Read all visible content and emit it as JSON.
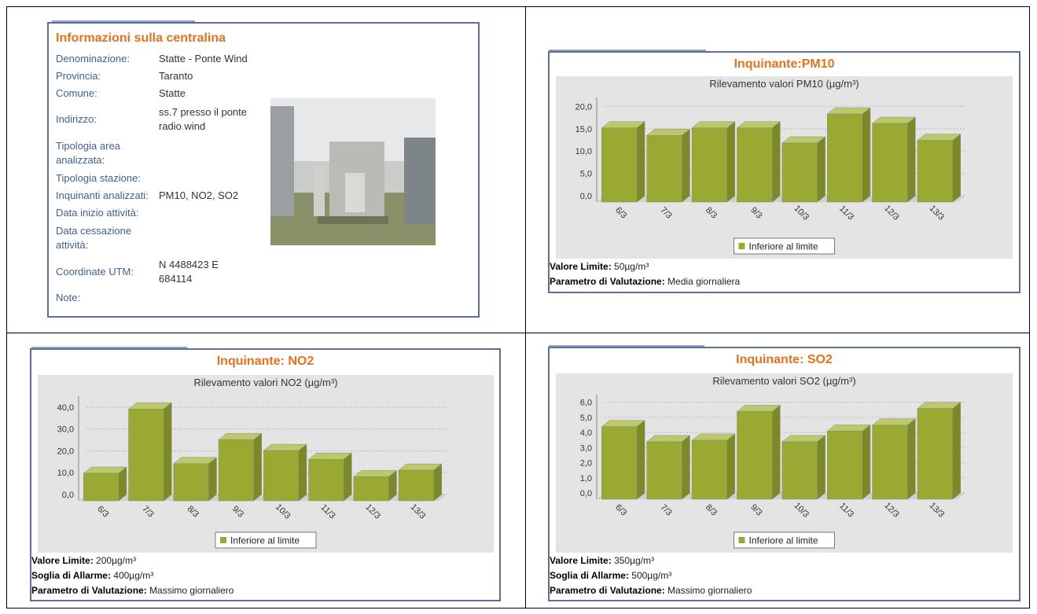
{
  "info": {
    "title": "Informazioni sulla centralina",
    "rows": [
      [
        "Denominazione:",
        "Statte - Ponte Wind"
      ],
      [
        "Provincia:",
        "Taranto"
      ],
      [
        "Comune:",
        "Statte"
      ],
      [
        "Indirizzo:",
        "ss.7 presso il ponte radio wind"
      ],
      [
        "Tipologia area analizzata:"
      ],
      [
        "Tipologia stazione:"
      ],
      [
        "Inquinanti analizzati:",
        "PM10, NO2, SO2"
      ],
      [
        "Data inizio attività:"
      ],
      [
        "Data cessazione attività:"
      ],
      [
        "Coordinate UTM:",
        "N 4488423 E 684114"
      ],
      [
        "Note:"
      ]
    ]
  },
  "chart_data": [
    {
      "type": "bar",
      "title": "Inquinante:PM10",
      "subtitle": "Rilevamento valori PM10 (µg/m³)",
      "categories": [
        "6/3",
        "7/3",
        "8/3",
        "9/3",
        "10/3",
        "11/3",
        "12/3",
        "13/3"
      ],
      "series": [
        {
          "name": "Inferiore al limite",
          "color": "#99a932",
          "values": [
            16.6,
            14.9,
            16.6,
            16.6,
            13.2,
            19.7,
            17.6,
            13.8
          ]
        }
      ],
      "ylim": [
        0,
        22
      ],
      "yticks": [
        {
          "value": 0,
          "label": "0,0"
        },
        {
          "value": 5,
          "label": "5,0"
        },
        {
          "value": 10,
          "label": "10,0"
        },
        {
          "value": 15,
          "label": "15,0"
        },
        {
          "value": 20,
          "label": "20,0"
        }
      ],
      "grid": true,
      "notes": [
        {
          "label": "Valore Limite:",
          "value": "50µg/m³"
        },
        {
          "label": "Parametro di Valutazione:",
          "value": "Media giornaliera"
        }
      ]
    },
    {
      "type": "bar",
      "title": "Inquinante: NO2",
      "subtitle": "Rilevamento valori NO2 (µg/m³)",
      "categories": [
        "6/3",
        "7/3",
        "8/3",
        "9/3",
        "10/3",
        "11/3",
        "12/3",
        "13/3"
      ],
      "series": [
        {
          "name": "Inferiore al limite",
          "color": "#99a932",
          "values": [
            12.6,
            42,
            17,
            28,
            23,
            19,
            11,
            14
          ]
        }
      ],
      "ylim": [
        0,
        45
      ],
      "yticks": [
        {
          "value": 0,
          "label": "0,0"
        },
        {
          "value": 10,
          "label": "10,0"
        },
        {
          "value": 20,
          "label": "20,0"
        },
        {
          "value": 30,
          "label": "30,0"
        },
        {
          "value": 40,
          "label": "40,0"
        }
      ],
      "grid": true,
      "notes": [
        {
          "label": "Valore Limite:",
          "value": "200µg/m³"
        },
        {
          "label": "Soglia di Allarme:",
          "value": "400µg/m³"
        },
        {
          "label": "Parametro di Valutazione:",
          "value": "Massimo giornaliero"
        }
      ]
    },
    {
      "type": "bar",
      "title": "Inquinante: SO2",
      "subtitle": "Rilevamento valori SO2 (µg/m³)",
      "categories": [
        "6/3",
        "7/3",
        "8/3",
        "9/3",
        "10/3",
        "11/3",
        "12/3",
        "13/3"
      ],
      "series": [
        {
          "name": "Inferiore al limite",
          "color": "#99a932",
          "values": [
            4.8,
            3.8,
            3.9,
            5.8,
            3.8,
            4.5,
            4.9,
            6.0
          ]
        }
      ],
      "ylim": [
        0,
        6.5
      ],
      "yticks": [
        {
          "value": 0,
          "label": "0,0"
        },
        {
          "value": 1,
          "label": "1,0"
        },
        {
          "value": 2,
          "label": "2,0"
        },
        {
          "value": 3,
          "label": "3,0"
        },
        {
          "value": 4,
          "label": "4,0"
        },
        {
          "value": 5,
          "label": "5,0"
        },
        {
          "value": 6,
          "label": "6,0"
        }
      ],
      "grid": true,
      "notes": [
        {
          "label": "Valore Limite:",
          "value": "350µg/m³"
        },
        {
          "label": "Soglia di Allarme:",
          "value": "500µg/m³"
        },
        {
          "label": "Parametro di Valutazione:",
          "value": "Massimo giornaliero"
        }
      ]
    }
  ]
}
